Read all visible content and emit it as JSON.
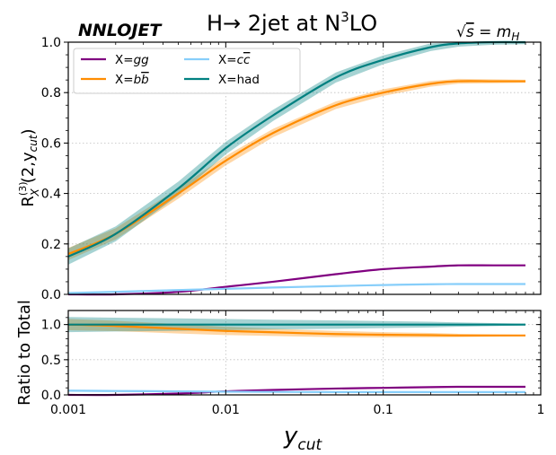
{
  "chart_data": {
    "type": "line",
    "brand": "NNLOJET",
    "title_main": "H",
    "title_arrow": "→",
    "title_rest": " 2jet at N",
    "title_sup": "3",
    "title_end": "LO",
    "energy_sqrt": "√",
    "energy_s": "s",
    "energy_eq": " = m",
    "energy_sub": "H",
    "xlabel": "y",
    "xlabel_sub": "cut",
    "xscale": "log",
    "xlim": [
      0.001,
      1
    ],
    "x_ticks": [
      0.001,
      0.01,
      0.1,
      1
    ],
    "x_tick_labels": [
      "0.001",
      "0.01",
      "0.1",
      "1"
    ],
    "top_panel": {
      "ylabel_R": "R",
      "ylabel_sup": "(3)",
      "ylabel_sub": "X",
      "ylabel_rest": "(2,y",
      "ylabel_sub2": "cut",
      "ylabel_close": ")",
      "ylim": [
        0,
        1.0
      ],
      "y_ticks": [
        0.0,
        0.2,
        0.4,
        0.6,
        0.8,
        1.0
      ],
      "y_tick_labels": [
        "0.0",
        "0.2",
        "0.4",
        "0.6",
        "0.8",
        "1.0"
      ]
    },
    "bottom_panel": {
      "ylabel": "Ratio to Total",
      "ylim": [
        0,
        1.2
      ],
      "y_ticks": [
        0.0,
        0.5,
        1.0
      ],
      "y_tick_labels": [
        "0.0",
        "0.5",
        "1.0"
      ]
    },
    "grid": true,
    "legend_position": "top-left",
    "x": [
      0.001,
      0.002,
      0.005,
      0.01,
      0.02,
      0.05,
      0.1,
      0.2,
      0.3,
      0.5,
      0.8
    ],
    "series": [
      {
        "key": "gg",
        "label_prefix": "X=",
        "label_main": "gg",
        "label_italic": true,
        "color": "#800080",
        "values": [
          0.0,
          0.0,
          0.01,
          0.03,
          0.05,
          0.08,
          0.1,
          0.11,
          0.115,
          0.115,
          0.115
        ],
        "ratio": [
          0.0,
          0.0,
          0.02,
          0.05,
          0.07,
          0.09,
          0.1,
          0.11,
          0.115,
          0.115,
          0.115
        ],
        "band": 0.0
      },
      {
        "key": "bb",
        "label_prefix": "X=",
        "label_main": "b",
        "label_bar": "b",
        "label_italic": true,
        "color": "#ff8c00",
        "values": [
          0.16,
          0.24,
          0.4,
          0.53,
          0.64,
          0.75,
          0.8,
          0.835,
          0.845,
          0.845,
          0.845
        ],
        "ratio": [
          1.0,
          0.98,
          0.94,
          0.91,
          0.89,
          0.865,
          0.855,
          0.85,
          0.845,
          0.845,
          0.845
        ],
        "band": 0.015
      },
      {
        "key": "cc",
        "label_prefix": "X=",
        "label_main": "c",
        "label_bar": "c",
        "label_italic": true,
        "color": "#87cefa",
        "values": [
          0.005,
          0.01,
          0.017,
          0.022,
          0.027,
          0.033,
          0.037,
          0.04,
          0.041,
          0.041,
          0.041
        ],
        "ratio": [
          0.06,
          0.055,
          0.05,
          0.045,
          0.042,
          0.04,
          0.04,
          0.04,
          0.04,
          0.04,
          0.04
        ],
        "band": 0.003
      },
      {
        "key": "had",
        "label_prefix": "X=",
        "label_main": "had",
        "label_italic": false,
        "color": "#008080",
        "values": [
          0.15,
          0.24,
          0.42,
          0.58,
          0.71,
          0.86,
          0.93,
          0.98,
          0.995,
          1.0,
          1.0
        ],
        "ratio": [
          1.0,
          1.0,
          1.0,
          1.0,
          1.0,
          1.0,
          1.0,
          1.0,
          1.0,
          1.0,
          1.0
        ],
        "band": 0.02
      }
    ]
  }
}
